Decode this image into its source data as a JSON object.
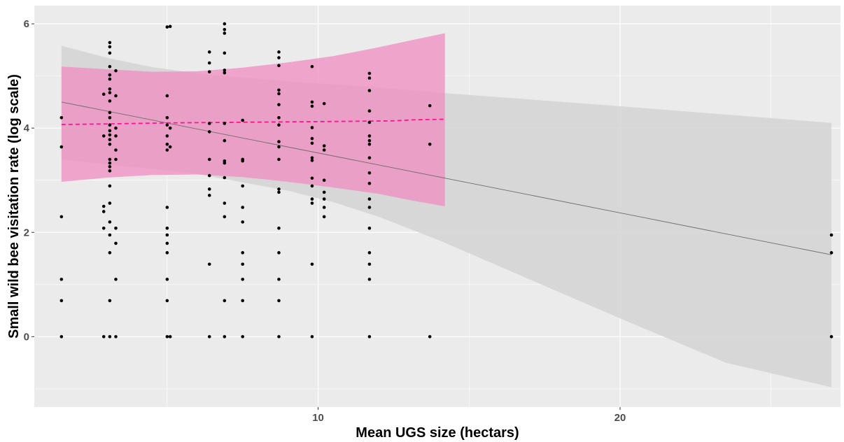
{
  "chart_data": {
    "type": "scatter",
    "title": "",
    "xlabel": "Mean UGS size (hectars)",
    "ylabel": "Small wild bee visitation rate (log scale)",
    "xlim": [
      0.6,
      27.3
    ],
    "ylim": [
      -1.35,
      6.35
    ],
    "x_ticks": [
      10,
      20
    ],
    "x_minor_ticks": [
      5,
      15,
      25
    ],
    "y_ticks": [
      0,
      2,
      4,
      6
    ],
    "y_minor_ticks": [
      -1,
      1,
      3,
      5
    ],
    "grid": true,
    "colors": {
      "panel": "#ebebeb",
      "grid": "#ffffff",
      "points": "#000000",
      "gray_band": "#d4d4d4",
      "gray_line": "#6b6b6b",
      "pink_band": "#f08cc2",
      "pink_line": "#ff1493"
    },
    "points": [
      [
        1.5,
        0
      ],
      [
        1.5,
        0.69
      ],
      [
        1.5,
        1.1
      ],
      [
        1.5,
        2.3
      ],
      [
        1.5,
        3.64
      ],
      [
        1.5,
        4.2
      ],
      [
        2.9,
        0
      ],
      [
        2.9,
        2.08
      ],
      [
        2.9,
        2.4
      ],
      [
        2.9,
        2.5
      ],
      [
        2.9,
        3.85
      ],
      [
        2.9,
        4.65
      ],
      [
        3.1,
        0
      ],
      [
        3.1,
        0.69
      ],
      [
        3.1,
        1.61
      ],
      [
        3.1,
        1.95
      ],
      [
        3.1,
        2.2
      ],
      [
        3.1,
        2.56
      ],
      [
        3.1,
        2.89
      ],
      [
        3.1,
        3.18
      ],
      [
        3.1,
        3.26
      ],
      [
        3.1,
        3.33
      ],
      [
        3.1,
        3.4
      ],
      [
        3.1,
        3.69
      ],
      [
        3.1,
        3.78
      ],
      [
        3.1,
        3.87
      ],
      [
        3.1,
        3.95
      ],
      [
        3.1,
        4.06
      ],
      [
        3.1,
        4.2
      ],
      [
        3.1,
        4.3
      ],
      [
        3.1,
        4.52
      ],
      [
        3.1,
        4.68
      ],
      [
        3.1,
        4.75
      ],
      [
        3.1,
        4.94
      ],
      [
        3.1,
        5.02
      ],
      [
        3.1,
        5.18
      ],
      [
        3.1,
        5.44
      ],
      [
        3.1,
        5.56
      ],
      [
        3.1,
        5.64
      ],
      [
        3.3,
        0
      ],
      [
        3.3,
        1.1
      ],
      [
        3.3,
        1.79
      ],
      [
        3.3,
        2.08
      ],
      [
        3.3,
        3.4
      ],
      [
        3.3,
        3.58
      ],
      [
        3.3,
        3.85
      ],
      [
        3.3,
        4.0
      ],
      [
        3.3,
        4.62
      ],
      [
        3.3,
        5.1
      ],
      [
        5.0,
        0
      ],
      [
        5.0,
        0.69
      ],
      [
        5.0,
        1.1
      ],
      [
        5.0,
        1.61
      ],
      [
        5.0,
        1.79
      ],
      [
        5.0,
        1.95
      ],
      [
        5.0,
        2.08
      ],
      [
        5.0,
        2.48
      ],
      [
        5.0,
        3.58
      ],
      [
        5.0,
        3.69
      ],
      [
        5.0,
        3.85
      ],
      [
        5.0,
        4.06
      ],
      [
        5.0,
        4.2
      ],
      [
        5.0,
        4.62
      ],
      [
        5.0,
        5.94
      ],
      [
        5.1,
        0
      ],
      [
        5.1,
        3.64
      ],
      [
        5.1,
        4.0
      ],
      [
        5.1,
        5.95
      ],
      [
        6.4,
        0
      ],
      [
        6.4,
        1.39
      ],
      [
        6.4,
        2.71
      ],
      [
        6.4,
        2.83
      ],
      [
        6.4,
        3.09
      ],
      [
        6.4,
        3.4
      ],
      [
        6.4,
        3.93
      ],
      [
        6.4,
        4.09
      ],
      [
        6.4,
        5.08
      ],
      [
        6.4,
        5.25
      ],
      [
        6.4,
        5.46
      ],
      [
        6.9,
        0
      ],
      [
        6.9,
        0.69
      ],
      [
        6.9,
        2.3
      ],
      [
        6.9,
        2.56
      ],
      [
        6.9,
        3.05
      ],
      [
        6.9,
        3.33
      ],
      [
        6.9,
        3.37
      ],
      [
        6.9,
        3.76
      ],
      [
        6.9,
        4.09
      ],
      [
        6.9,
        5.06
      ],
      [
        6.9,
        5.11
      ],
      [
        6.9,
        5.44
      ],
      [
        6.9,
        5.82
      ],
      [
        6.9,
        5.89
      ],
      [
        6.9,
        6.0
      ],
      [
        7.5,
        0
      ],
      [
        7.5,
        0.69
      ],
      [
        7.5,
        1.1
      ],
      [
        7.5,
        1.39
      ],
      [
        7.5,
        1.61
      ],
      [
        7.5,
        2.2
      ],
      [
        7.5,
        2.48
      ],
      [
        7.5,
        2.89
      ],
      [
        7.5,
        3.37
      ],
      [
        7.5,
        3.4
      ],
      [
        7.5,
        4.15
      ],
      [
        8.7,
        0
      ],
      [
        8.7,
        0.69
      ],
      [
        8.7,
        1.1
      ],
      [
        8.7,
        1.61
      ],
      [
        8.7,
        2.08
      ],
      [
        8.7,
        2.77
      ],
      [
        8.7,
        2.83
      ],
      [
        8.7,
        3.4
      ],
      [
        8.7,
        3.64
      ],
      [
        8.7,
        3.74
      ],
      [
        8.7,
        4.06
      ],
      [
        8.7,
        4.2
      ],
      [
        8.7,
        4.45
      ],
      [
        8.7,
        4.66
      ],
      [
        8.7,
        4.73
      ],
      [
        8.7,
        5.2
      ],
      [
        8.7,
        5.35
      ],
      [
        8.7,
        5.46
      ],
      [
        9.8,
        0
      ],
      [
        9.8,
        1.39
      ],
      [
        9.8,
        2.56
      ],
      [
        9.8,
        2.64
      ],
      [
        9.8,
        2.89
      ],
      [
        9.8,
        3.04
      ],
      [
        9.8,
        3.38
      ],
      [
        9.8,
        3.43
      ],
      [
        9.8,
        3.71
      ],
      [
        9.8,
        3.8
      ],
      [
        9.8,
        4.01
      ],
      [
        9.8,
        4.42
      ],
      [
        9.8,
        4.5
      ],
      [
        9.8,
        5.18
      ],
      [
        10.2,
        2.3
      ],
      [
        10.2,
        2.48
      ],
      [
        10.2,
        2.64
      ],
      [
        10.2,
        2.77
      ],
      [
        10.2,
        3.0
      ],
      [
        10.2,
        3.58
      ],
      [
        10.2,
        3.66
      ],
      [
        10.2,
        4.47
      ],
      [
        11.7,
        0
      ],
      [
        11.7,
        1.1
      ],
      [
        11.7,
        1.39
      ],
      [
        11.7,
        1.61
      ],
      [
        11.7,
        2.08
      ],
      [
        11.7,
        2.48
      ],
      [
        11.7,
        2.64
      ],
      [
        11.7,
        2.94
      ],
      [
        11.7,
        3.14
      ],
      [
        11.7,
        3.43
      ],
      [
        11.7,
        3.69
      ],
      [
        11.7,
        3.76
      ],
      [
        11.7,
        3.85
      ],
      [
        11.7,
        4.11
      ],
      [
        11.7,
        4.33
      ],
      [
        11.7,
        4.72
      ],
      [
        11.7,
        4.96
      ],
      [
        11.7,
        5.05
      ],
      [
        13.7,
        0
      ],
      [
        13.7,
        3.69
      ],
      [
        13.7,
        4.43
      ],
      [
        27.0,
        0
      ],
      [
        27.0,
        1.61
      ],
      [
        27.0,
        1.95
      ]
    ],
    "gray_fit": {
      "line": [
        [
          1.5,
          4.5
        ],
        [
          27.0,
          1.57
        ]
      ],
      "band_upper": [
        [
          1.5,
          5.58
        ],
        [
          3.0,
          5.35
        ],
        [
          4.5,
          5.17
        ],
        [
          6.0,
          5.05
        ],
        [
          7.5,
          4.97
        ],
        [
          9.0,
          4.9
        ],
        [
          10.5,
          4.84
        ],
        [
          12.0,
          4.78
        ],
        [
          14.0,
          4.68
        ],
        [
          17.0,
          4.55
        ],
        [
          20.0,
          4.42
        ],
        [
          23.5,
          4.26
        ],
        [
          27.0,
          4.1
        ]
      ],
      "band_lower": [
        [
          1.5,
          3.4
        ],
        [
          3.0,
          3.3
        ],
        [
          4.5,
          3.22
        ],
        [
          6.0,
          3.12
        ],
        [
          7.5,
          2.96
        ],
        [
          9.0,
          2.8
        ],
        [
          10.5,
          2.58
        ],
        [
          12.0,
          2.3
        ],
        [
          14.0,
          1.85
        ],
        [
          17.0,
          1.1
        ],
        [
          20.0,
          0.35
        ],
        [
          23.5,
          -0.5
        ],
        [
          27.0,
          -0.97
        ]
      ]
    },
    "pink_fit": {
      "line": [
        [
          1.5,
          4.07
        ],
        [
          3.0,
          4.08
        ],
        [
          5.0,
          4.1
        ],
        [
          7.0,
          4.11
        ],
        [
          9.0,
          4.12
        ],
        [
          11.0,
          4.13
        ],
        [
          12.5,
          4.14
        ],
        [
          13.2,
          4.16
        ],
        [
          14.2,
          4.17
        ]
      ],
      "band_upper": [
        [
          1.5,
          5.18
        ],
        [
          3.0,
          5.13
        ],
        [
          4.5,
          5.08
        ],
        [
          6.0,
          5.09
        ],
        [
          7.5,
          5.16
        ],
        [
          9.0,
          5.26
        ],
        [
          10.5,
          5.38
        ],
        [
          12.0,
          5.55
        ],
        [
          13.2,
          5.7
        ],
        [
          14.2,
          5.82
        ]
      ],
      "band_lower": [
        [
          1.5,
          2.97
        ],
        [
          3.0,
          3.05
        ],
        [
          4.5,
          3.1
        ],
        [
          6.0,
          3.11
        ],
        [
          7.5,
          3.06
        ],
        [
          9.0,
          2.97
        ],
        [
          10.5,
          2.86
        ],
        [
          12.0,
          2.74
        ],
        [
          13.2,
          2.6
        ],
        [
          14.2,
          2.5
        ]
      ]
    }
  }
}
